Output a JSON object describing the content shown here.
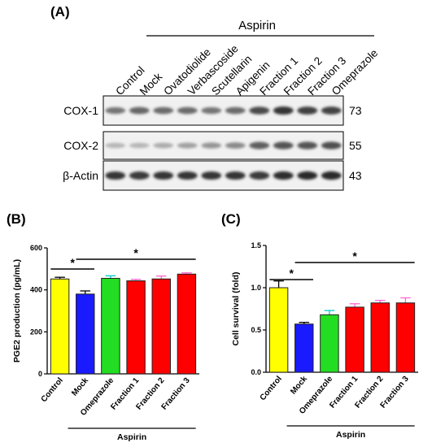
{
  "panel_a": {
    "label": "(A)",
    "group_title": "Aspirin",
    "lanes": [
      "Control",
      "Mock",
      "Ovatodiolide",
      "Verbascoside",
      "Scutellarin",
      "Apigenin",
      "Fraction 1",
      "Fraction 2",
      "Fraction 3",
      "Omeprazole"
    ],
    "rows": [
      {
        "label": "COX-1",
        "kda": "73",
        "intensity": [
          0.55,
          0.62,
          0.6,
          0.6,
          0.55,
          0.6,
          0.75,
          0.85,
          0.8,
          0.78
        ]
      },
      {
        "label": "COX-2",
        "kda": "55",
        "intensity": [
          0.25,
          0.25,
          0.3,
          0.35,
          0.4,
          0.45,
          0.65,
          0.7,
          0.7,
          0.72
        ]
      },
      {
        "label": "β-Actin",
        "kda": "43",
        "intensity": [
          0.85,
          0.82,
          0.85,
          0.85,
          0.85,
          0.85,
          0.82,
          0.88,
          0.9,
          0.9
        ]
      }
    ]
  },
  "chart_data": [
    {
      "type": "bar",
      "panel_label": "(B)",
      "categories": [
        "Control",
        "Mock",
        "Omeprazole",
        "Fraction 1",
        "Fraction 2",
        "Fraction 3"
      ],
      "values": [
        452,
        380,
        455,
        443,
        452,
        475
      ],
      "errors": [
        8,
        15,
        12,
        7,
        14,
        6
      ],
      "colors": [
        "#ffff00",
        "#1a1aff",
        "#22dd22",
        "#ff0000",
        "#ff0000",
        "#ff0000"
      ],
      "error_colors": [
        "#000000",
        "#000000",
        "#00cccc",
        "#ff66cc",
        "#ff66cc",
        "#ff66cc"
      ],
      "ylabel": "PGE2 production (pg/mL)",
      "ylim": [
        0,
        600
      ],
      "yticks": [
        "0",
        "200",
        "400",
        "600"
      ],
      "group_label": "Aspirin",
      "significance": [
        {
          "from": "Control",
          "to": "Mock",
          "label": "*"
        },
        {
          "from": "Mock",
          "to": "Fraction 3",
          "label": "*"
        }
      ]
    },
    {
      "type": "bar",
      "panel_label": "(C)",
      "categories": [
        "Control",
        "Mock",
        "Omeprazole",
        "Fraction 1",
        "Fraction 2",
        "Fraction 3"
      ],
      "values": [
        1.0,
        0.57,
        0.68,
        0.77,
        0.82,
        0.82
      ],
      "errors": [
        0.08,
        0.02,
        0.05,
        0.04,
        0.03,
        0.06
      ],
      "colors": [
        "#ffff00",
        "#1a1aff",
        "#22dd22",
        "#ff0000",
        "#ff0000",
        "#ff0000"
      ],
      "error_colors": [
        "#000000",
        "#000000",
        "#00cccc",
        "#ff66cc",
        "#ff66cc",
        "#ff66cc"
      ],
      "ylabel": "Cell survival (fold)",
      "ylim": [
        0,
        1.5
      ],
      "yticks": [
        "0.0",
        "0.5",
        "1.0",
        "1.5"
      ],
      "group_label": "Aspirin",
      "significance": [
        {
          "from": "Control",
          "to": "Mock",
          "label": "*"
        },
        {
          "from": "Mock",
          "to": "Fraction 3",
          "label": "*"
        }
      ]
    }
  ]
}
